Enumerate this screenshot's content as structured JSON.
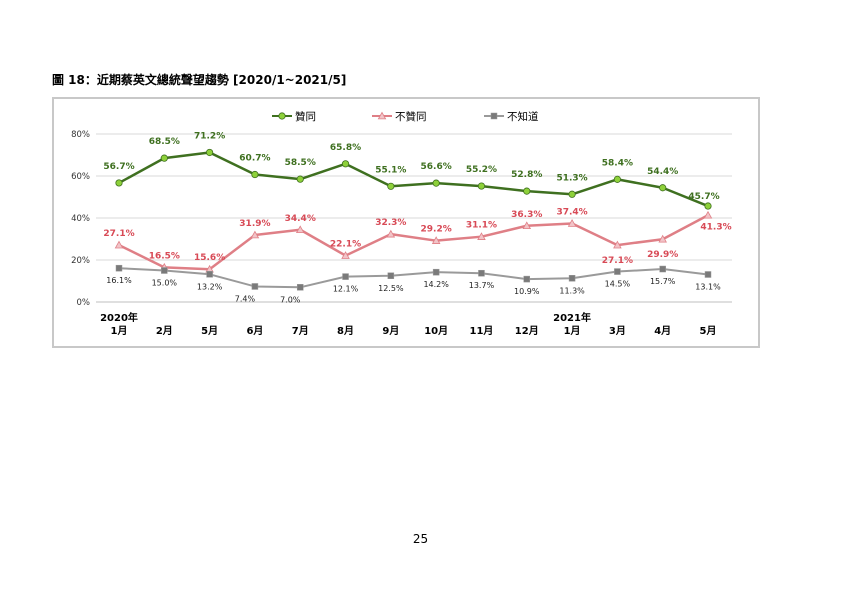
{
  "figure_title": "圖 18：近期蔡英文總統聲望趨勢 [2020/1~2021/5]",
  "page_number": "25",
  "colors": {
    "approve": "#3f7020",
    "approve_marker": "#8ed13a",
    "disapprove": "#df7f86",
    "disapprove_label": "#d84a56",
    "unknown": "#9a9a9a",
    "unknown_marker": "#7a7a7a",
    "grid": "#d9d9d9"
  },
  "chart_data": {
    "type": "line",
    "title": "",
    "xlabel": "",
    "ylabel": "",
    "ylim": [
      0,
      80
    ],
    "yticks": [
      "0%",
      "20%",
      "40%",
      "60%",
      "80%"
    ],
    "grid": "horizontal",
    "legend_position": "top",
    "year_labels": {
      "0": "2020年",
      "10": "2021年"
    },
    "categories": [
      "1月",
      "2月",
      "5月",
      "6月",
      "7月",
      "8月",
      "9月",
      "10月",
      "11月",
      "12月",
      "1月",
      "3月",
      "4月",
      "5月"
    ],
    "series": [
      {
        "name": "贊同",
        "values": [
          56.7,
          68.5,
          71.2,
          60.7,
          58.5,
          65.8,
          55.1,
          56.6,
          55.2,
          52.8,
          51.3,
          58.4,
          54.4,
          45.7
        ],
        "labels": [
          "56.7%",
          "68.5%",
          "71.2%",
          "60.7%",
          "58.5%",
          "65.8%",
          "55.1%",
          "56.6%",
          "55.2%",
          "52.8%",
          "51.3%",
          "58.4%",
          "54.4%",
          "45.7%"
        ]
      },
      {
        "name": "不贊同",
        "values": [
          27.1,
          16.5,
          15.6,
          31.9,
          34.4,
          22.1,
          32.3,
          29.2,
          31.1,
          36.3,
          37.4,
          27.1,
          29.9,
          41.3
        ],
        "labels": [
          "27.1%",
          "16.5%",
          "15.6%",
          "31.9%",
          "34.4%",
          "22.1%",
          "32.3%",
          "29.2%",
          "31.1%",
          "36.3%",
          "37.4%",
          "27.1%",
          "29.9%",
          "41.3%"
        ]
      },
      {
        "name": "不知道",
        "values": [
          16.1,
          15.0,
          13.2,
          7.4,
          7.0,
          12.1,
          12.5,
          14.2,
          13.7,
          10.9,
          11.3,
          14.5,
          15.7,
          13.1
        ],
        "labels": [
          "16.1%",
          "15.0%",
          "13.2%",
          "7.4%",
          "7.0%",
          "12.1%",
          "12.5%",
          "14.2%",
          "13.7%",
          "10.9%",
          "11.3%",
          "14.5%",
          "15.7%",
          "13.1%"
        ]
      }
    ]
  }
}
